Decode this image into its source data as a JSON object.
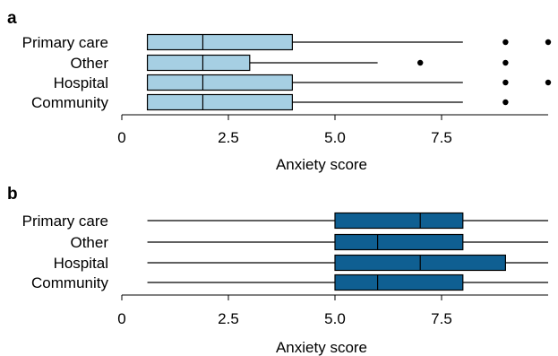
{
  "chart_data": [
    {
      "panel": "a",
      "type": "box",
      "orientation": "horizontal",
      "categories": [
        "Primary care",
        "Other",
        "Hospital",
        "Community"
      ],
      "xlabel": "Anxiety score",
      "xlim": [
        0,
        10
      ],
      "xticks": [
        0,
        2.5,
        5.0,
        7.5
      ],
      "xtick_labels": [
        "0",
        "2.5",
        "5.0",
        "7.5"
      ],
      "box_color": "#a6cfe3",
      "grid": false,
      "boxes": [
        {
          "category": "Primary care",
          "whisker_low": 0.6,
          "q1": 0.6,
          "median": 1.9,
          "q3": 4,
          "whisker_high": 8,
          "outliers": [
            9,
            10
          ]
        },
        {
          "category": "Other",
          "whisker_low": 0.6,
          "q1": 0.6,
          "median": 1.9,
          "q3": 3,
          "whisker_high": 6,
          "outliers": [
            7,
            9
          ]
        },
        {
          "category": "Hospital",
          "whisker_low": 0.6,
          "q1": 0.6,
          "median": 1.9,
          "q3": 4,
          "whisker_high": 8,
          "outliers": [
            9,
            10
          ]
        },
        {
          "category": "Community",
          "whisker_low": 0.6,
          "q1": 0.6,
          "median": 1.9,
          "q3": 4,
          "whisker_high": 8,
          "outliers": [
            9
          ]
        }
      ]
    },
    {
      "panel": "b",
      "type": "box",
      "orientation": "horizontal",
      "categories": [
        "Primary care",
        "Other",
        "Hospital",
        "Community"
      ],
      "xlabel": "Anxiety score",
      "xlim": [
        0,
        10
      ],
      "xticks": [
        0,
        2.5,
        5.0,
        7.5
      ],
      "xtick_labels": [
        "0",
        "2.5",
        "5.0",
        "7.5"
      ],
      "box_color": "#0f5f92",
      "grid": false,
      "boxes": [
        {
          "category": "Primary care",
          "whisker_low": 0.6,
          "q1": 5,
          "median": 7,
          "q3": 8,
          "whisker_high": 10,
          "outliers": []
        },
        {
          "category": "Other",
          "whisker_low": 0.6,
          "q1": 5,
          "median": 6,
          "q3": 8,
          "whisker_high": 10,
          "outliers": []
        },
        {
          "category": "Hospital",
          "whisker_low": 0.6,
          "q1": 5,
          "median": 7,
          "q3": 9,
          "whisker_high": 10,
          "outliers": []
        },
        {
          "category": "Community",
          "whisker_low": 0.6,
          "q1": 5,
          "median": 6,
          "q3": 8,
          "whisker_high": 10,
          "outliers": []
        }
      ]
    }
  ]
}
